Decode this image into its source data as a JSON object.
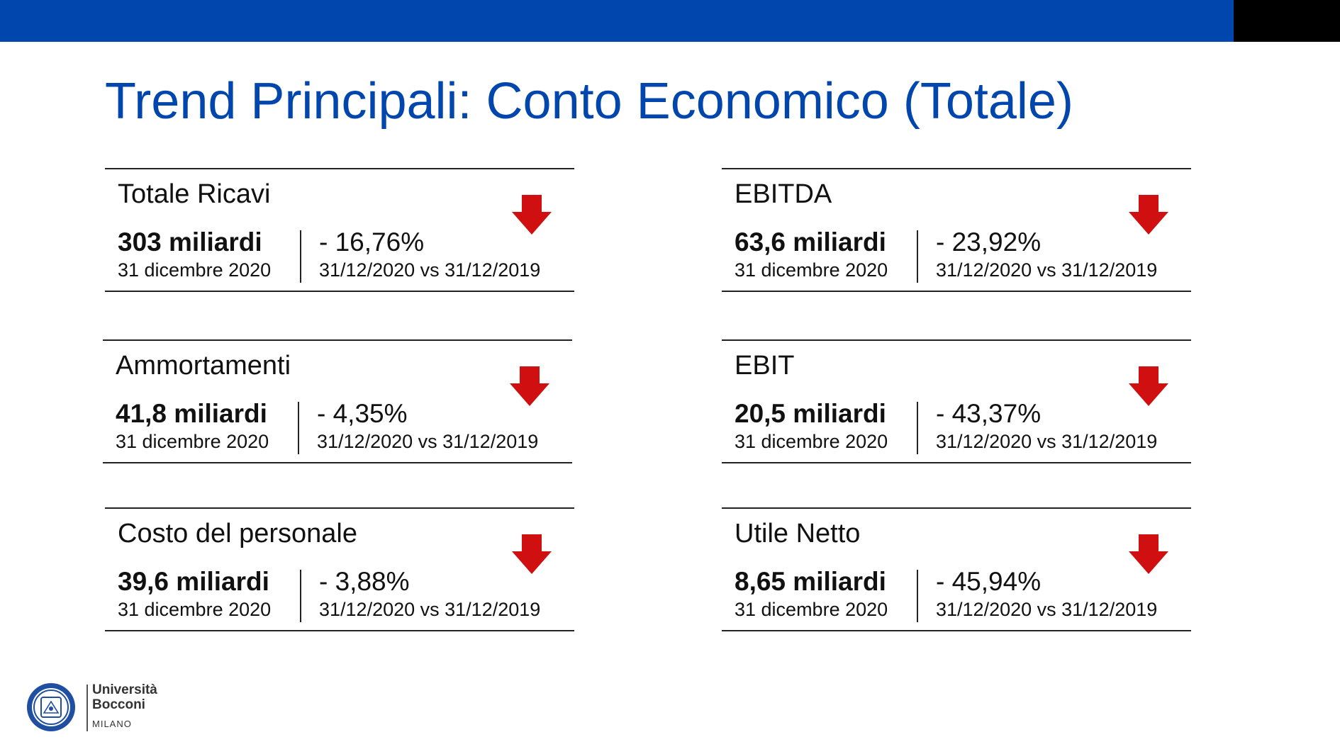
{
  "slide": {
    "title": "Trend Principali: Conto Economico (Totale)",
    "accent_color": "#0046ad",
    "arrow_color": "#d01010"
  },
  "cards": [
    {
      "label": "Totale Ricavi",
      "value": "303 miliardi",
      "date": "31 dicembre 2020",
      "change": "- 16,76%",
      "compare": "31/12/2020 vs 31/12/2019",
      "trend_icon": "arrow-down-icon"
    },
    {
      "label": "EBITDA",
      "value": "63,6 miliardi",
      "date": "31 dicembre 2020",
      "change": "- 23,92%",
      "compare": "31/12/2020 vs 31/12/2019",
      "trend_icon": "arrow-down-icon"
    },
    {
      "label": "Ammortamenti",
      "value": "41,8 miliardi",
      "date": "31 dicembre 2020",
      "change": "- 4,35%",
      "compare": "31/12/2020 vs 31/12/2019",
      "trend_icon": "arrow-down-icon"
    },
    {
      "label": "EBIT",
      "value": "20,5 miliardi",
      "date": "31 dicembre 2020",
      "change": "- 43,37%",
      "compare": "31/12/2020 vs 31/12/2019",
      "trend_icon": "arrow-down-icon"
    },
    {
      "label": "Costo del personale",
      "value": "39,6 miliardi",
      "date": "31 dicembre 2020",
      "change": "- 3,88%",
      "compare": "31/12/2020 vs 31/12/2019",
      "trend_icon": "arrow-down-icon"
    },
    {
      "label": "Utile Netto",
      "value": "8,65 miliardi",
      "date": "31 dicembre 2020",
      "change": "- 45,94%",
      "compare": "31/12/2020 vs 31/12/2019",
      "trend_icon": "arrow-down-icon"
    }
  ],
  "logo": {
    "line1": "Università",
    "line2": "Bocconi",
    "city": "MILANO",
    "icon": "university-seal-icon"
  }
}
